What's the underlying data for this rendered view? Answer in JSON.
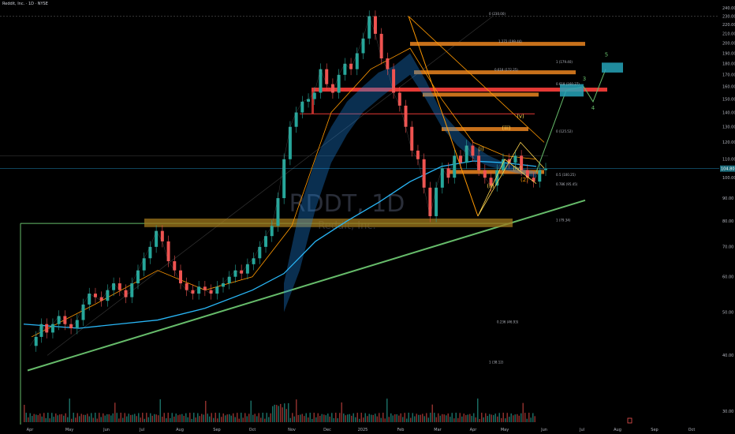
{
  "header": {
    "symbol_line": "Reddit, Inc. · 1D · NYSE"
  },
  "watermark": {
    "ticker": "RDDT, 1D",
    "name": "Reddit, Inc."
  },
  "colors": {
    "up": "#26a69a",
    "down": "#ef5350",
    "ema_band": "#1e88e5",
    "ema_red": "#e53935",
    "ema_green": "#43a047",
    "orange": "#ff9800",
    "support_green": "#66bb6a",
    "fib_block": "#c8711b",
    "red_zone": "#e53935",
    "teal_target": "#26a3b8",
    "cyan_line": "#29b6f6",
    "yellow_wave": "#ffd54f"
  },
  "price_badge": "104.80",
  "elliott_labels": {
    "w3": "3",
    "w4": "4",
    "w5": "5",
    "iii": "(iii)",
    "iv": "(iv)",
    "v": "(v)",
    "ii": "(ii)",
    "i": "(i)",
    "ii2": "(2)"
  },
  "fib_labels": [
    "0 (230.00)",
    "1.272 (199.44)",
    "1 (179.40)",
    "0.618 (172.25)",
    "0.618 (160.27)",
    "0 (125.52)",
    "0.5 (100.25)",
    "0.786 (95.45)",
    "1 (79.34)",
    "0.236 (46.93)",
    "1 (38.12)"
  ],
  "chart_data": {
    "type": "line",
    "title": "",
    "xlabel": "",
    "ylabel": "",
    "ylim": [
      28,
      244
    ],
    "yscale": "log",
    "ytick_labels": [
      "240.00",
      "230.00",
      "220.00",
      "210.00",
      "200.00",
      "190.00",
      "180.00",
      "170.00",
      "160.00",
      "150.00",
      "140.00",
      "130.00",
      "120.00",
      "110.00",
      "100.00",
      "90.00",
      "80.00",
      "70.00",
      "60.00",
      "50.00",
      "40.00",
      "30.00"
    ],
    "yticks": [
      240,
      230,
      220,
      210,
      200,
      190,
      180,
      170,
      160,
      150,
      140,
      130,
      120,
      110,
      100,
      90,
      80,
      70,
      60,
      50,
      40,
      30
    ],
    "x_labels": [
      "Apr",
      "May",
      "Jun",
      "Jul",
      "Aug",
      "Sep",
      "Oct",
      "Nov",
      "Dec",
      "2025",
      "Feb",
      "Mar",
      "Apr",
      "May",
      "Jun",
      "Jul",
      "Aug",
      "Sep",
      "Oct"
    ],
    "grid": false,
    "series": [
      {
        "x": [
          0,
          8,
          15,
          22,
          30,
          38,
          46,
          54,
          62,
          70,
          78,
          86,
          94,
          102,
          110,
          118,
          126,
          134,
          142,
          150,
          158,
          166,
          174,
          182,
          190,
          198,
          206,
          214,
          222,
          230,
          238,
          246,
          254,
          262,
          270,
          278,
          286,
          294,
          302,
          310,
          318,
          326,
          334,
          342,
          350,
          358,
          366,
          374,
          382,
          390,
          398,
          406,
          414,
          422,
          430,
          438,
          446,
          454,
          462,
          470,
          478,
          486,
          494,
          502,
          510,
          518,
          526,
          534,
          542,
          550,
          558,
          566,
          574,
          582,
          590,
          598,
          606,
          614,
          622,
          630,
          638,
          646,
          654,
          662,
          670,
          678
        ],
        "values": [
          42,
          44,
          47,
          45,
          47,
          49,
          47,
          46,
          48,
          52,
          55,
          54,
          53,
          56,
          58,
          56,
          54,
          58,
          62,
          66,
          70,
          76,
          72,
          65,
          62,
          58,
          56,
          55,
          57,
          56,
          55,
          57,
          58,
          60,
          62,
          61,
          64,
          66,
          70,
          74,
          78,
          90,
          110,
          130,
          140,
          148,
          150,
          155,
          175,
          162,
          155,
          170,
          180,
          175,
          190,
          205,
          230,
          210,
          185,
          175,
          155,
          145,
          130,
          115,
          110,
          95,
          82,
          95,
          105,
          100,
          112,
          108,
          118,
          112,
          104,
          100,
          96,
          104,
          110,
          108,
          112,
          104,
          100,
          98,
          104,
          104.8
        ]
      }
    ]
  }
}
